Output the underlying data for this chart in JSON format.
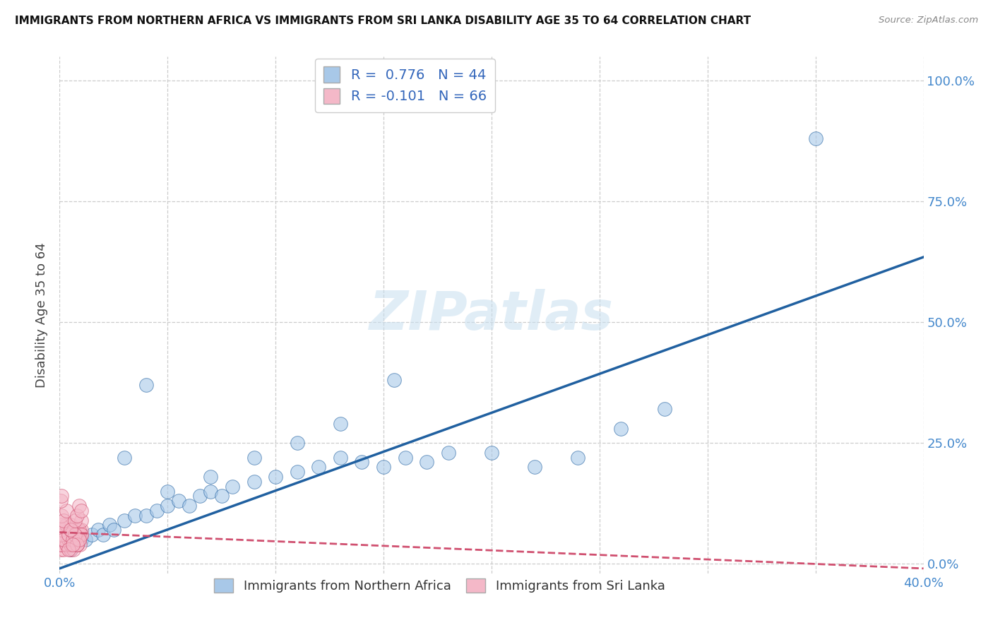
{
  "title": "IMMIGRANTS FROM NORTHERN AFRICA VS IMMIGRANTS FROM SRI LANKA DISABILITY AGE 35 TO 64 CORRELATION CHART",
  "source": "Source: ZipAtlas.com",
  "ylabel": "Disability Age 35 to 64",
  "xlim": [
    0.0,
    0.4
  ],
  "ylim": [
    -0.02,
    1.05
  ],
  "xticks": [
    0.0,
    0.05,
    0.1,
    0.15,
    0.2,
    0.25,
    0.3,
    0.35,
    0.4
  ],
  "ytick_positions": [
    0.0,
    0.25,
    0.5,
    0.75,
    1.0
  ],
  "yticklabels_right": [
    "0.0%",
    "25.0%",
    "50.0%",
    "75.0%",
    "100.0%"
  ],
  "bg_color": "#ffffff",
  "grid_color": "#cccccc",
  "blue_color": "#a8c8e8",
  "pink_color": "#f4b8c8",
  "blue_line_color": "#2060a0",
  "pink_line_color": "#d05070",
  "legend_label1": "R =  0.776   N = 44",
  "legend_label2": "R = -0.101   N = 66",
  "label1": "Immigrants from Northern Africa",
  "label2": "Immigrants from Sri Lanka",
  "watermark": "ZIPatlas",
  "blue_line_x0": 0.0,
  "blue_line_y0": -0.01,
  "blue_line_x1": 0.4,
  "blue_line_y1": 0.635,
  "pink_line_x0": 0.0,
  "pink_line_y0": 0.065,
  "pink_line_x1": 0.4,
  "pink_line_y1": -0.01,
  "blue_x": [
    0.005,
    0.008,
    0.01,
    0.012,
    0.015,
    0.018,
    0.02,
    0.023,
    0.025,
    0.03,
    0.035,
    0.04,
    0.045,
    0.05,
    0.055,
    0.06,
    0.065,
    0.07,
    0.075,
    0.08,
    0.09,
    0.1,
    0.11,
    0.12,
    0.13,
    0.14,
    0.15,
    0.16,
    0.17,
    0.18,
    0.2,
    0.22,
    0.24,
    0.26,
    0.28,
    0.05,
    0.07,
    0.09,
    0.11,
    0.13,
    0.155,
    0.35,
    0.03,
    0.04
  ],
  "blue_y": [
    0.03,
    0.04,
    0.05,
    0.05,
    0.06,
    0.07,
    0.06,
    0.08,
    0.07,
    0.09,
    0.1,
    0.1,
    0.11,
    0.12,
    0.13,
    0.12,
    0.14,
    0.15,
    0.14,
    0.16,
    0.17,
    0.18,
    0.19,
    0.2,
    0.22,
    0.21,
    0.2,
    0.22,
    0.21,
    0.23,
    0.23,
    0.2,
    0.22,
    0.28,
    0.32,
    0.15,
    0.18,
    0.22,
    0.25,
    0.29,
    0.38,
    0.88,
    0.22,
    0.37
  ],
  "pink_x": [
    0.0005,
    0.001,
    0.0015,
    0.002,
    0.0025,
    0.003,
    0.0035,
    0.004,
    0.0045,
    0.005,
    0.0055,
    0.006,
    0.0065,
    0.007,
    0.0075,
    0.008,
    0.0085,
    0.009,
    0.0095,
    0.01,
    0.0005,
    0.001,
    0.002,
    0.003,
    0.004,
    0.005,
    0.006,
    0.007,
    0.008,
    0.009,
    0.01,
    0.0005,
    0.001,
    0.002,
    0.003,
    0.004,
    0.005,
    0.006,
    0.007,
    0.008,
    0.009,
    0.01,
    0.0005,
    0.001,
    0.002,
    0.003,
    0.004,
    0.005,
    0.006,
    0.007,
    0.008,
    0.009,
    0.01,
    0.0005,
    0.001,
    0.002,
    0.003,
    0.004,
    0.005,
    0.006,
    0.007,
    0.008,
    0.009,
    0.01,
    0.0005,
    0.001
  ],
  "pink_y": [
    0.03,
    0.04,
    0.05,
    0.03,
    0.05,
    0.04,
    0.06,
    0.05,
    0.04,
    0.03,
    0.05,
    0.04,
    0.03,
    0.06,
    0.05,
    0.04,
    0.07,
    0.05,
    0.04,
    0.06,
    0.05,
    0.04,
    0.06,
    0.05,
    0.07,
    0.08,
    0.06,
    0.07,
    0.05,
    0.06,
    0.07,
    0.04,
    0.05,
    0.06,
    0.04,
    0.05,
    0.04,
    0.06,
    0.05,
    0.04,
    0.07,
    0.06,
    0.06,
    0.07,
    0.05,
    0.08,
    0.06,
    0.07,
    0.05,
    0.06,
    0.04,
    0.05,
    0.09,
    0.08,
    0.1,
    0.09,
    0.11,
    0.03,
    0.07,
    0.04,
    0.09,
    0.1,
    0.12,
    0.11,
    0.13,
    0.14
  ]
}
